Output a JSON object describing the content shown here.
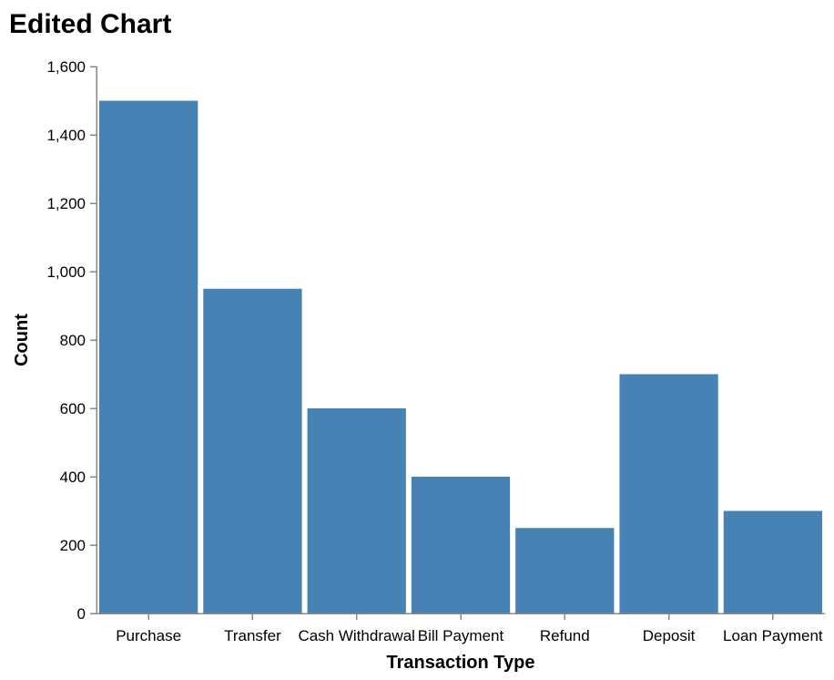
{
  "chart_data": {
    "type": "bar",
    "title": "Edited Chart",
    "xlabel": "Transaction Type",
    "ylabel": "Count",
    "categories": [
      "Purchase",
      "Transfer",
      "Cash Withdrawal",
      "Bill Payment",
      "Refund",
      "Deposit",
      "Loan Payment"
    ],
    "values": [
      1500,
      950,
      600,
      400,
      250,
      700,
      300
    ],
    "ylim": [
      0,
      1600
    ],
    "yticks": [
      0,
      200,
      400,
      600,
      800,
      1000,
      1200,
      1400,
      1600
    ],
    "ytick_labels": [
      "0",
      "200",
      "400",
      "600",
      "800",
      "1,000",
      "1,200",
      "1,400",
      "1,600"
    ],
    "grid": false,
    "colors": {
      "bar": "#4682b4",
      "axis": "#888888"
    }
  }
}
